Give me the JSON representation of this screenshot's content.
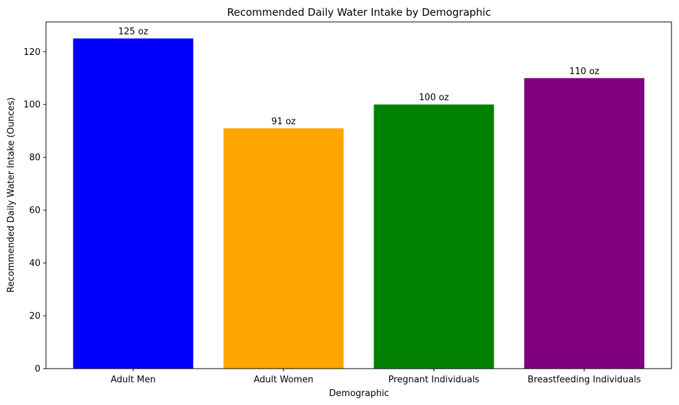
{
  "chart_data": {
    "type": "bar",
    "title": "Recommended Daily Water Intake by Demographic",
    "xlabel": "Demographic",
    "ylabel": "Recommended Daily Water Intake (Ounces)",
    "categories": [
      "Adult Men",
      "Adult Women",
      "Pregnant Individuals",
      "Breastfeeding Individuals"
    ],
    "values": [
      125,
      91,
      100,
      110
    ],
    "data_labels": [
      "125 oz",
      "91 oz",
      "100 oz",
      "110 oz"
    ],
    "colors": [
      "#0000ff",
      "#ffa500",
      "#008000",
      "#800080"
    ],
    "ylim": [
      0,
      131.25
    ],
    "yticks": [
      0,
      20,
      40,
      60,
      80,
      100,
      120
    ],
    "grid": false,
    "legend": "none"
  }
}
